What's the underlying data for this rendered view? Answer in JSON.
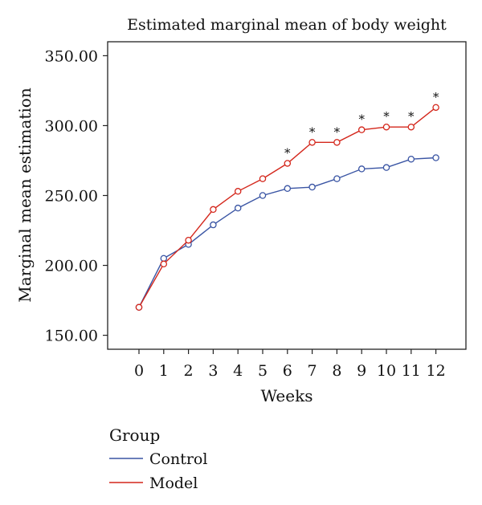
{
  "chart_data": {
    "type": "line",
    "title": "Estimated marginal mean of body weight",
    "xlabel": "Weeks",
    "ylabel": "Marginal mean estimation",
    "x": [
      0,
      1,
      2,
      3,
      4,
      5,
      6,
      7,
      8,
      9,
      10,
      11,
      12
    ],
    "ylim": [
      140,
      360
    ],
    "yticks": [
      "150.00",
      "200.00",
      "250.00",
      "300.00",
      "350.00"
    ],
    "ytick_values": [
      150,
      200,
      250,
      300,
      350
    ],
    "grid": false,
    "legend": {
      "title": "Group",
      "placement": "bottom-left"
    },
    "series": [
      {
        "name": "Control",
        "color": "#3a55a4",
        "values": [
          170,
          205,
          215,
          229,
          241,
          250,
          255,
          256,
          262,
          269,
          270,
          276,
          277
        ]
      },
      {
        "name": "Model",
        "color": "#d4271c",
        "values": [
          170,
          201,
          218,
          240,
          253,
          262,
          273,
          288,
          288,
          297,
          299,
          299,
          313
        ]
      }
    ],
    "significance_marker": "*",
    "significant_weeks": [
      6,
      7,
      8,
      9,
      10,
      11,
      12
    ]
  }
}
